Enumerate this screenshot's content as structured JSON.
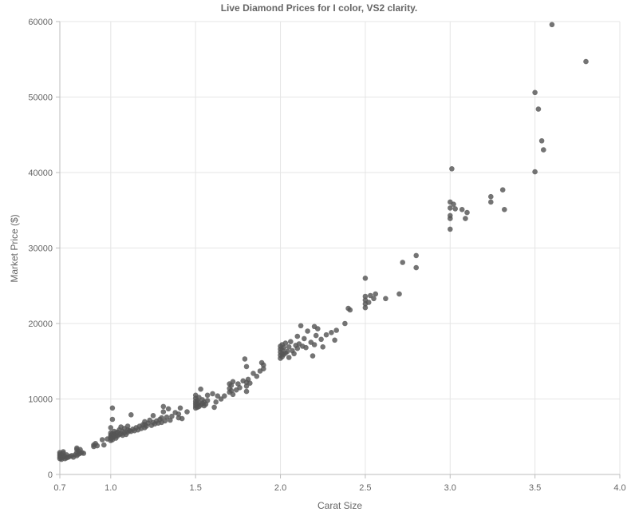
{
  "chart_data": {
    "type": "scatter",
    "title": "Live Diamond Prices for I color, VS2 clarity.",
    "xlabel": "Carat Size",
    "ylabel": "Market Price ($)",
    "xlim": [
      0.7,
      4.0
    ],
    "ylim": [
      0,
      60000
    ],
    "x_ticks": [
      "0.7",
      "1.0",
      "1.5",
      "2.0",
      "2.5",
      "3.0",
      "3.5",
      "4.0"
    ],
    "y_ticks": [
      "0",
      "10000",
      "20000",
      "30000",
      "40000",
      "50000",
      "60000"
    ],
    "grid": true,
    "point_color": "#555555",
    "series": [
      {
        "points": [
          [
            0.7,
            2100
          ],
          [
            0.7,
            2300
          ],
          [
            0.7,
            2500
          ],
          [
            0.7,
            2700
          ],
          [
            0.7,
            2900
          ],
          [
            0.71,
            2000
          ],
          [
            0.71,
            2200
          ],
          [
            0.71,
            2600
          ],
          [
            0.72,
            2300
          ],
          [
            0.72,
            2800
          ],
          [
            0.72,
            3000
          ],
          [
            0.73,
            2100
          ],
          [
            0.73,
            2400
          ],
          [
            0.74,
            2200
          ],
          [
            0.74,
            2600
          ],
          [
            0.75,
            2300
          ],
          [
            0.76,
            2400
          ],
          [
            0.77,
            2500
          ],
          [
            0.78,
            2300
          ],
          [
            0.79,
            2600
          ],
          [
            0.8,
            2500
          ],
          [
            0.8,
            2900
          ],
          [
            0.8,
            3300
          ],
          [
            0.8,
            3500
          ],
          [
            0.81,
            2700
          ],
          [
            0.81,
            3100
          ],
          [
            0.82,
            2800
          ],
          [
            0.82,
            3300
          ],
          [
            0.83,
            2900
          ],
          [
            0.84,
            2800
          ],
          [
            0.9,
            3700
          ],
          [
            0.9,
            3900
          ],
          [
            0.91,
            4100
          ],
          [
            0.92,
            3800
          ],
          [
            0.95,
            4600
          ],
          [
            0.96,
            3900
          ],
          [
            0.98,
            4700
          ],
          [
            1.0,
            4500
          ],
          [
            1.0,
            4800
          ],
          [
            1.0,
            5000
          ],
          [
            1.0,
            5200
          ],
          [
            1.0,
            5500
          ],
          [
            1.0,
            6200
          ],
          [
            1.01,
            4600
          ],
          [
            1.01,
            4900
          ],
          [
            1.01,
            5100
          ],
          [
            1.01,
            5400
          ],
          [
            1.01,
            7300
          ],
          [
            1.01,
            8800
          ],
          [
            1.02,
            5000
          ],
          [
            1.02,
            5300
          ],
          [
            1.02,
            5700
          ],
          [
            1.03,
            4800
          ],
          [
            1.03,
            5200
          ],
          [
            1.03,
            5500
          ],
          [
            1.04,
            5100
          ],
          [
            1.04,
            5600
          ],
          [
            1.05,
            5300
          ],
          [
            1.05,
            5900
          ],
          [
            1.06,
            5400
          ],
          [
            1.06,
            6300
          ],
          [
            1.07,
            5200
          ],
          [
            1.07,
            5700
          ],
          [
            1.08,
            5500
          ],
          [
            1.08,
            6100
          ],
          [
            1.09,
            5300
          ],
          [
            1.1,
            5600
          ],
          [
            1.1,
            5900
          ],
          [
            1.1,
            6400
          ],
          [
            1.11,
            5800
          ],
          [
            1.12,
            5700
          ],
          [
            1.12,
            7900
          ],
          [
            1.13,
            6000
          ],
          [
            1.14,
            5800
          ],
          [
            1.15,
            6200
          ],
          [
            1.16,
            5900
          ],
          [
            1.17,
            6400
          ],
          [
            1.18,
            6100
          ],
          [
            1.19,
            6600
          ],
          [
            1.2,
            6200
          ],
          [
            1.2,
            6600
          ],
          [
            1.2,
            7000
          ],
          [
            1.21,
            6400
          ],
          [
            1.22,
            6800
          ],
          [
            1.23,
            7200
          ],
          [
            1.24,
            6500
          ],
          [
            1.25,
            6900
          ],
          [
            1.25,
            7800
          ],
          [
            1.26,
            6700
          ],
          [
            1.27,
            7100
          ],
          [
            1.28,
            6800
          ],
          [
            1.29,
            7300
          ],
          [
            1.3,
            6900
          ],
          [
            1.3,
            7500
          ],
          [
            1.31,
            8300
          ],
          [
            1.31,
            9000
          ],
          [
            1.32,
            7100
          ],
          [
            1.33,
            7600
          ],
          [
            1.34,
            8700
          ],
          [
            1.35,
            7200
          ],
          [
            1.36,
            7700
          ],
          [
            1.38,
            8200
          ],
          [
            1.4,
            7500
          ],
          [
            1.4,
            8000
          ],
          [
            1.41,
            8800
          ],
          [
            1.42,
            7400
          ],
          [
            1.45,
            8300
          ],
          [
            1.5,
            8800
          ],
          [
            1.5,
            9100
          ],
          [
            1.5,
            9400
          ],
          [
            1.5,
            9700
          ],
          [
            1.5,
            10100
          ],
          [
            1.5,
            10500
          ],
          [
            1.51,
            8900
          ],
          [
            1.51,
            9300
          ],
          [
            1.51,
            9800
          ],
          [
            1.52,
            9000
          ],
          [
            1.52,
            9500
          ],
          [
            1.52,
            10200
          ],
          [
            1.53,
            9200
          ],
          [
            1.53,
            11300
          ],
          [
            1.54,
            9400
          ],
          [
            1.54,
            9900
          ],
          [
            1.55,
            9100
          ],
          [
            1.55,
            9600
          ],
          [
            1.56,
            9300
          ],
          [
            1.57,
            9800
          ],
          [
            1.57,
            10500
          ],
          [
            1.6,
            10700
          ],
          [
            1.61,
            8900
          ],
          [
            1.62,
            9600
          ],
          [
            1.63,
            10400
          ],
          [
            1.65,
            10000
          ],
          [
            1.67,
            10400
          ],
          [
            1.7,
            10900
          ],
          [
            1.7,
            11400
          ],
          [
            1.7,
            12000
          ],
          [
            1.71,
            11100
          ],
          [
            1.71,
            11800
          ],
          [
            1.72,
            10600
          ],
          [
            1.72,
            12300
          ],
          [
            1.74,
            11200
          ],
          [
            1.75,
            12000
          ],
          [
            1.76,
            11500
          ],
          [
            1.78,
            12400
          ],
          [
            1.79,
            15300
          ],
          [
            1.8,
            11000
          ],
          [
            1.8,
            11700
          ],
          [
            1.8,
            12200
          ],
          [
            1.8,
            14300
          ],
          [
            1.81,
            12600
          ],
          [
            1.82,
            12100
          ],
          [
            1.84,
            13400
          ],
          [
            1.86,
            13000
          ],
          [
            1.88,
            13700
          ],
          [
            1.89,
            14800
          ],
          [
            1.9,
            14000
          ],
          [
            1.9,
            14500
          ],
          [
            2.0,
            15400
          ],
          [
            2.0,
            15800
          ],
          [
            2.0,
            16200
          ],
          [
            2.0,
            16600
          ],
          [
            2.0,
            17000
          ],
          [
            2.01,
            15600
          ],
          [
            2.01,
            16000
          ],
          [
            2.01,
            16500
          ],
          [
            2.01,
            17200
          ],
          [
            2.02,
            15900
          ],
          [
            2.02,
            16800
          ],
          [
            2.03,
            16100
          ],
          [
            2.03,
            17400
          ],
          [
            2.04,
            16300
          ],
          [
            2.05,
            15500
          ],
          [
            2.05,
            16900
          ],
          [
            2.06,
            17600
          ],
          [
            2.07,
            16400
          ],
          [
            2.08,
            16000
          ],
          [
            2.09,
            17100
          ],
          [
            2.1,
            16700
          ],
          [
            2.1,
            18300
          ],
          [
            2.11,
            17300
          ],
          [
            2.12,
            19700
          ],
          [
            2.13,
            17000
          ],
          [
            2.14,
            18000
          ],
          [
            2.15,
            16800
          ],
          [
            2.16,
            19000
          ],
          [
            2.18,
            17500
          ],
          [
            2.19,
            15700
          ],
          [
            2.2,
            19600
          ],
          [
            2.2,
            17200
          ],
          [
            2.21,
            18400
          ],
          [
            2.22,
            19300
          ],
          [
            2.24,
            17900
          ],
          [
            2.25,
            16900
          ],
          [
            2.27,
            18500
          ],
          [
            2.3,
            18800
          ],
          [
            2.32,
            17800
          ],
          [
            2.33,
            19100
          ],
          [
            2.38,
            20000
          ],
          [
            2.4,
            22000
          ],
          [
            2.41,
            21800
          ],
          [
            2.5,
            22100
          ],
          [
            2.5,
            22600
          ],
          [
            2.5,
            23100
          ],
          [
            2.5,
            23600
          ],
          [
            2.5,
            26000
          ],
          [
            2.52,
            22800
          ],
          [
            2.53,
            23700
          ],
          [
            2.55,
            23300
          ],
          [
            2.56,
            23900
          ],
          [
            2.62,
            23300
          ],
          [
            2.7,
            23900
          ],
          [
            2.72,
            28100
          ],
          [
            2.8,
            27400
          ],
          [
            2.8,
            29000
          ],
          [
            3.0,
            32500
          ],
          [
            3.0,
            33900
          ],
          [
            3.0,
            34300
          ],
          [
            3.0,
            35300
          ],
          [
            3.0,
            36100
          ],
          [
            3.01,
            40500
          ],
          [
            3.02,
            35800
          ],
          [
            3.03,
            35200
          ],
          [
            3.07,
            35100
          ],
          [
            3.09,
            33900
          ],
          [
            3.1,
            34700
          ],
          [
            3.24,
            36100
          ],
          [
            3.24,
            36800
          ],
          [
            3.31,
            37700
          ],
          [
            3.32,
            35100
          ],
          [
            3.5,
            40100
          ],
          [
            3.5,
            50600
          ],
          [
            3.52,
            48400
          ],
          [
            3.54,
            44200
          ],
          [
            3.55,
            43000
          ],
          [
            3.6,
            59600
          ],
          [
            3.8,
            54700
          ]
        ]
      }
    ]
  }
}
